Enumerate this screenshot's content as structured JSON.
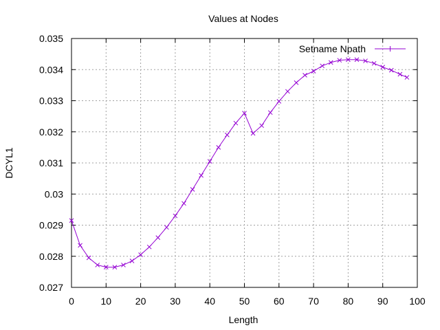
{
  "chart_data": {
    "type": "line",
    "title": "Values at Nodes",
    "xlabel": "Length",
    "ylabel": "DCYL1",
    "xlim": [
      0,
      100
    ],
    "ylim": [
      0.027,
      0.035
    ],
    "xticks": [
      "0",
      "10",
      "20",
      "30",
      "40",
      "50",
      "60",
      "70",
      "80",
      "90",
      "100"
    ],
    "yticks": [
      "0.027",
      "0.028",
      "0.029",
      "0.03",
      "0.031",
      "0.032",
      "0.033",
      "0.034",
      "0.035"
    ],
    "grid": true,
    "legend_position": "top-right",
    "series": [
      {
        "name": "Setname Npath",
        "color": "#9400D3",
        "marker": "plus",
        "x": [
          0,
          2.5,
          5,
          7.5,
          10,
          12.5,
          15,
          17.5,
          20,
          22.5,
          25,
          27.5,
          30,
          32.5,
          35,
          37.5,
          40,
          42.5,
          45,
          47.5,
          50,
          52.5,
          55,
          57.5,
          60,
          62.5,
          65,
          67.5,
          70,
          72.5,
          75,
          77.5,
          80,
          82.5,
          85,
          87.5,
          90,
          92.5,
          95,
          97
        ],
        "y": [
          0.02915,
          0.02835,
          0.02795,
          0.02772,
          0.02765,
          0.02765,
          0.02772,
          0.02785,
          0.02805,
          0.0283,
          0.0286,
          0.02893,
          0.0293,
          0.0297,
          0.03015,
          0.0306,
          0.03105,
          0.0315,
          0.0319,
          0.03228,
          0.0326,
          0.03195,
          0.0322,
          0.03262,
          0.03298,
          0.0333,
          0.03358,
          0.03382,
          0.03395,
          0.03412,
          0.03423,
          0.0343,
          0.03432,
          0.03432,
          0.03428,
          0.0342,
          0.03408,
          0.03398,
          0.03385,
          0.03375
        ]
      }
    ]
  }
}
